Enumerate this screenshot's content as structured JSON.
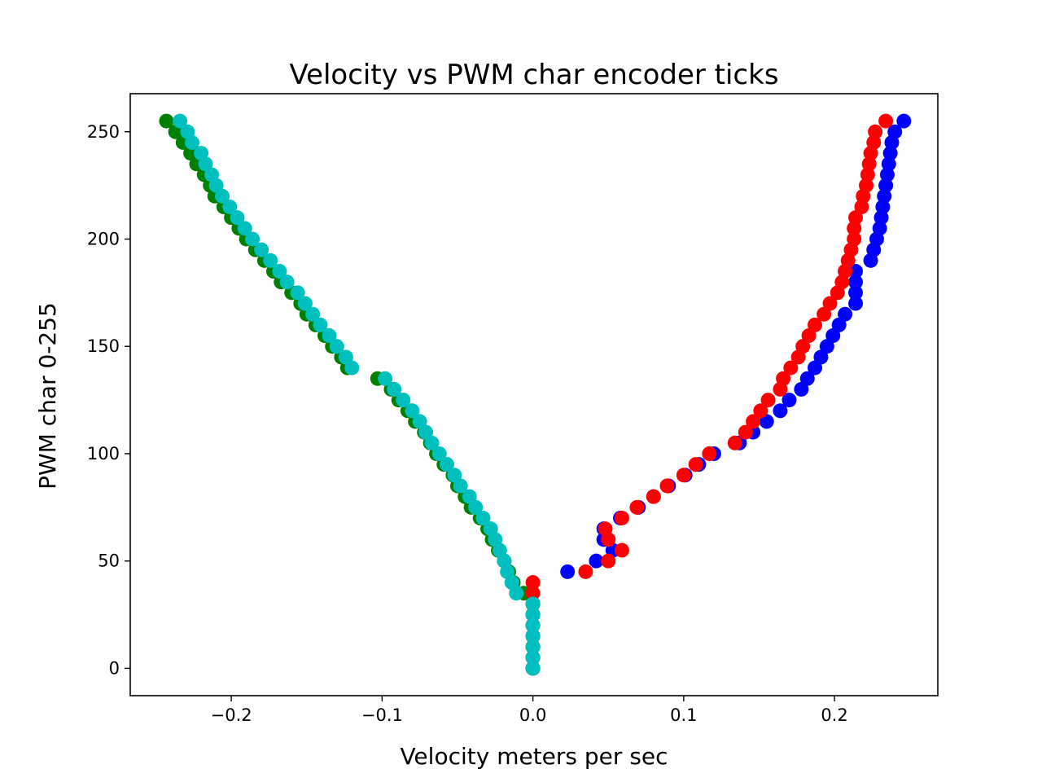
{
  "chart_data": {
    "type": "scatter",
    "title": "Velocity vs PWM char encoder ticks",
    "xlabel": "Velocity meters per sec",
    "ylabel": "PWM char 0-255",
    "xlim": [
      -0.267,
      0.2685
    ],
    "ylim": [
      -12.75,
      267.75
    ],
    "grid": false,
    "x_ticks": [
      -0.2,
      -0.1,
      0.0,
      0.1,
      0.2
    ],
    "x_tick_labels": [
      "−0.2",
      "−0.1",
      "0.0",
      "0.1",
      "0.2"
    ],
    "y_ticks": [
      0,
      50,
      100,
      150,
      200,
      250
    ],
    "y_tick_labels": [
      "0",
      "50",
      "100",
      "150",
      "200",
      "250"
    ],
    "series": [
      {
        "color": "#0000ff",
        "points": [
          [
            0.0,
            0
          ],
          [
            0.0,
            5
          ],
          [
            0.0,
            10
          ],
          [
            0.0,
            15
          ],
          [
            0.0,
            20
          ],
          [
            0.0,
            25
          ],
          [
            0.0,
            30
          ],
          [
            0.023,
            45
          ],
          [
            0.042,
            50
          ],
          [
            0.053,
            55
          ],
          [
            0.047,
            60
          ],
          [
            0.047,
            65
          ],
          [
            0.058,
            70
          ],
          [
            0.07,
            75
          ],
          [
            0.08,
            80
          ],
          [
            0.09,
            85
          ],
          [
            0.101,
            90
          ],
          [
            0.11,
            95
          ],
          [
            0.12,
            100
          ],
          [
            0.137,
            105
          ],
          [
            0.146,
            110
          ],
          [
            0.155,
            115
          ],
          [
            0.164,
            120
          ],
          [
            0.17,
            125
          ],
          [
            0.178,
            130
          ],
          [
            0.182,
            135
          ],
          [
            0.187,
            140
          ],
          [
            0.191,
            145
          ],
          [
            0.195,
            150
          ],
          [
            0.199,
            155
          ],
          [
            0.203,
            160
          ],
          [
            0.207,
            165
          ],
          [
            0.214,
            170
          ],
          [
            0.214,
            175
          ],
          [
            0.214,
            180
          ],
          [
            0.214,
            185
          ],
          [
            0.224,
            190
          ],
          [
            0.226,
            195
          ],
          [
            0.228,
            200
          ],
          [
            0.23,
            205
          ],
          [
            0.231,
            210
          ],
          [
            0.232,
            215
          ],
          [
            0.233,
            220
          ],
          [
            0.234,
            225
          ],
          [
            0.235,
            230
          ],
          [
            0.236,
            235
          ],
          [
            0.237,
            240
          ],
          [
            0.238,
            245
          ],
          [
            0.24,
            250
          ],
          [
            0.246,
            255
          ]
        ]
      },
      {
        "color": "#008000",
        "points": [
          [
            0.0,
            0
          ],
          [
            0.0,
            5
          ],
          [
            0.0,
            10
          ],
          [
            0.0,
            15
          ],
          [
            0.0,
            20
          ],
          [
            0.0,
            25
          ],
          [
            0.0,
            30
          ],
          [
            -0.006,
            35
          ],
          [
            -0.013,
            40
          ],
          [
            -0.016,
            45
          ],
          [
            -0.019,
            50
          ],
          [
            -0.023,
            55
          ],
          [
            -0.027,
            60
          ],
          [
            -0.03,
            65
          ],
          [
            -0.035,
            70
          ],
          [
            -0.041,
            75
          ],
          [
            -0.045,
            80
          ],
          [
            -0.05,
            85
          ],
          [
            -0.053,
            90
          ],
          [
            -0.059,
            95
          ],
          [
            -0.064,
            100
          ],
          [
            -0.068,
            105
          ],
          [
            -0.072,
            110
          ],
          [
            -0.078,
            115
          ],
          [
            -0.083,
            120
          ],
          [
            -0.089,
            125
          ],
          [
            -0.094,
            130
          ],
          [
            -0.103,
            135
          ],
          [
            -0.123,
            140
          ],
          [
            -0.127,
            145
          ],
          [
            -0.133,
            150
          ],
          [
            -0.138,
            155
          ],
          [
            -0.144,
            160
          ],
          [
            -0.15,
            165
          ],
          [
            -0.154,
            170
          ],
          [
            -0.16,
            175
          ],
          [
            -0.167,
            180
          ],
          [
            -0.172,
            185
          ],
          [
            -0.178,
            190
          ],
          [
            -0.184,
            195
          ],
          [
            -0.19,
            200
          ],
          [
            -0.195,
            205
          ],
          [
            -0.2,
            210
          ],
          [
            -0.205,
            215
          ],
          [
            -0.211,
            220
          ],
          [
            -0.214,
            225
          ],
          [
            -0.218,
            230
          ],
          [
            -0.223,
            235
          ],
          [
            -0.227,
            240
          ],
          [
            -0.232,
            245
          ],
          [
            -0.237,
            250
          ],
          [
            -0.243,
            255
          ]
        ]
      },
      {
        "color": "#ff0000",
        "points": [
          [
            0.0,
            0
          ],
          [
            0.0,
            5
          ],
          [
            0.0,
            10
          ],
          [
            0.0,
            15
          ],
          [
            0.0,
            20
          ],
          [
            0.0,
            25
          ],
          [
            0.0,
            30
          ],
          [
            0.0,
            35
          ],
          [
            0.0,
            40
          ],
          [
            0.035,
            45
          ],
          [
            0.05,
            50
          ],
          [
            0.059,
            55
          ],
          [
            0.05,
            60
          ],
          [
            0.048,
            65
          ],
          [
            0.059,
            70
          ],
          [
            0.069,
            75
          ],
          [
            0.08,
            80
          ],
          [
            0.089,
            85
          ],
          [
            0.1,
            90
          ],
          [
            0.108,
            95
          ],
          [
            0.117,
            100
          ],
          [
            0.134,
            105
          ],
          [
            0.141,
            110
          ],
          [
            0.146,
            115
          ],
          [
            0.151,
            120
          ],
          [
            0.156,
            125
          ],
          [
            0.164,
            130
          ],
          [
            0.166,
            135
          ],
          [
            0.171,
            140
          ],
          [
            0.176,
            145
          ],
          [
            0.179,
            150
          ],
          [
            0.183,
            155
          ],
          [
            0.187,
            160
          ],
          [
            0.193,
            165
          ],
          [
            0.197,
            170
          ],
          [
            0.202,
            175
          ],
          [
            0.205,
            180
          ],
          [
            0.207,
            185
          ],
          [
            0.209,
            190
          ],
          [
            0.211,
            195
          ],
          [
            0.213,
            200
          ],
          [
            0.213,
            205
          ],
          [
            0.214,
            210
          ],
          [
            0.218,
            215
          ],
          [
            0.219,
            220
          ],
          [
            0.221,
            225
          ],
          [
            0.222,
            230
          ],
          [
            0.223,
            235
          ],
          [
            0.224,
            240
          ],
          [
            0.226,
            245
          ],
          [
            0.227,
            250
          ],
          [
            0.234,
            255
          ]
        ]
      },
      {
        "color": "#00bfbf",
        "points": [
          [
            0.0,
            0
          ],
          [
            0.0,
            5
          ],
          [
            0.0,
            10
          ],
          [
            0.0,
            15
          ],
          [
            0.0,
            20
          ],
          [
            0.0,
            25
          ],
          [
            0.0,
            30
          ],
          [
            -0.011,
            35
          ],
          [
            -0.014,
            40
          ],
          [
            -0.017,
            45
          ],
          [
            -0.019,
            50
          ],
          [
            -0.022,
            55
          ],
          [
            -0.025,
            60
          ],
          [
            -0.028,
            65
          ],
          [
            -0.033,
            70
          ],
          [
            -0.038,
            75
          ],
          [
            -0.042,
            80
          ],
          [
            -0.048,
            85
          ],
          [
            -0.052,
            90
          ],
          [
            -0.057,
            95
          ],
          [
            -0.062,
            100
          ],
          [
            -0.067,
            105
          ],
          [
            -0.071,
            110
          ],
          [
            -0.075,
            115
          ],
          [
            -0.08,
            120
          ],
          [
            -0.086,
            125
          ],
          [
            -0.092,
            130
          ],
          [
            -0.098,
            135
          ],
          [
            -0.12,
            140
          ],
          [
            -0.124,
            145
          ],
          [
            -0.13,
            150
          ],
          [
            -0.135,
            155
          ],
          [
            -0.141,
            160
          ],
          [
            -0.146,
            165
          ],
          [
            -0.151,
            170
          ],
          [
            -0.156,
            175
          ],
          [
            -0.163,
            180
          ],
          [
            -0.168,
            185
          ],
          [
            -0.174,
            190
          ],
          [
            -0.18,
            195
          ],
          [
            -0.186,
            200
          ],
          [
            -0.191,
            205
          ],
          [
            -0.196,
            210
          ],
          [
            -0.201,
            215
          ],
          [
            -0.206,
            220
          ],
          [
            -0.21,
            225
          ],
          [
            -0.213,
            230
          ],
          [
            -0.217,
            235
          ],
          [
            -0.22,
            240
          ],
          [
            -0.226,
            245
          ],
          [
            -0.229,
            250
          ],
          [
            -0.234,
            255
          ]
        ]
      }
    ]
  }
}
